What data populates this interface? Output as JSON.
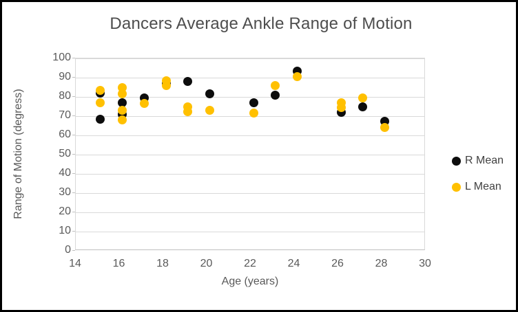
{
  "chart_data": {
    "type": "scatter",
    "title": "Dancers Average Ankle Range of Motion",
    "xlabel": "Age (years)",
    "ylabel": "Range of Motion (degress)",
    "xlim": [
      14,
      30
    ],
    "ylim": [
      0,
      100
    ],
    "x_ticks": [
      14,
      16,
      18,
      20,
      22,
      24,
      26,
      28,
      30
    ],
    "y_ticks": [
      0,
      10,
      20,
      30,
      40,
      50,
      60,
      70,
      80,
      90,
      100
    ],
    "grid": "horizontal",
    "legend_position": "right",
    "series": [
      {
        "name": "R Mean",
        "color": "#0d0d0d",
        "points": [
          [
            15,
            82
          ],
          [
            15,
            68.5
          ],
          [
            16,
            77
          ],
          [
            16,
            71
          ],
          [
            17,
            79.5
          ],
          [
            18,
            87
          ],
          [
            19,
            88
          ],
          [
            20,
            81.5
          ],
          [
            22,
            77
          ],
          [
            23,
            81
          ],
          [
            24,
            93.5
          ],
          [
            26,
            72
          ],
          [
            27,
            75
          ],
          [
            28,
            67.5
          ]
        ]
      },
      {
        "name": "L Mean",
        "color": "#ffc000",
        "points": [
          [
            15,
            83.5
          ],
          [
            15,
            77
          ],
          [
            16,
            85
          ],
          [
            16,
            81.5
          ],
          [
            16,
            73
          ],
          [
            16,
            68
          ],
          [
            17,
            76.5
          ],
          [
            18,
            88.5
          ],
          [
            18,
            86
          ],
          [
            19,
            75
          ],
          [
            19,
            72.5
          ],
          [
            20,
            73
          ],
          [
            22,
            71.5
          ],
          [
            23,
            86
          ],
          [
            24,
            90.5
          ],
          [
            26,
            77
          ],
          [
            26,
            74.5
          ],
          [
            27,
            79.5
          ],
          [
            28,
            64
          ]
        ]
      }
    ],
    "colors": {
      "grid": "#d9d9d9",
      "axis_line": "#bfbfbf",
      "text": "#595959",
      "title_text": "#4d4d4d",
      "r_mean": "#0d0d0d",
      "l_mean": "#ffc000"
    }
  }
}
